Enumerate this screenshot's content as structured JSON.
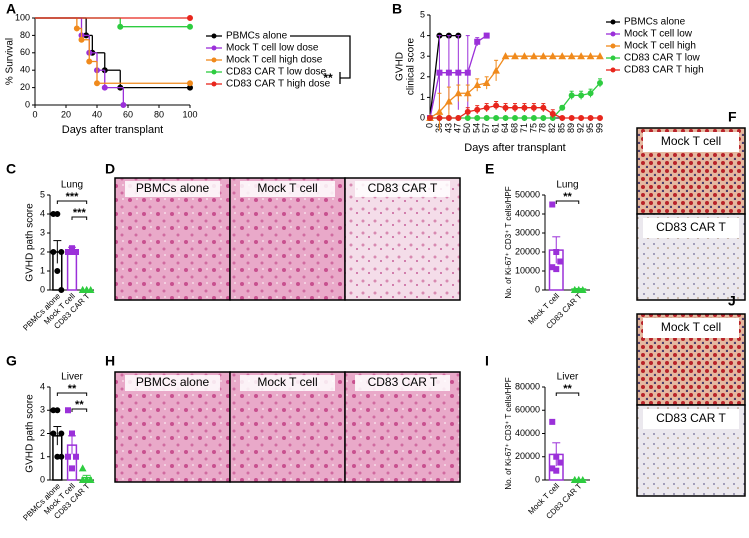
{
  "chart_data": [
    {
      "panel": "A",
      "type": "line",
      "step": true,
      "xlabel": "Days after transplant",
      "ylabel": "% Survival",
      "xlim": [
        0,
        100
      ],
      "xticks": [
        0,
        20,
        40,
        60,
        80,
        100
      ],
      "ylim": [
        0,
        100
      ],
      "yticks": [
        0,
        20,
        40,
        60,
        80,
        100
      ],
      "annotation": "**",
      "series": [
        {
          "name": "PBMCs alone",
          "color": "#000000",
          "x": [
            0,
            33,
            37,
            45,
            55,
            100
          ],
          "values": [
            100,
            80,
            60,
            40,
            20,
            20
          ]
        },
        {
          "name": "Mock T cell low dose",
          "color": "#9b30d9",
          "x": [
            0,
            30,
            35,
            40,
            45,
            57
          ],
          "values": [
            100,
            80,
            60,
            40,
            20,
            0
          ]
        },
        {
          "name": "Mock T cell high dose",
          "color": "#f08a1c",
          "x": [
            0,
            27,
            30,
            35,
            40,
            100
          ],
          "values": [
            100,
            88,
            75,
            50,
            25,
            25
          ]
        },
        {
          "name": "CD83 CAR T low dose",
          "color": "#2ecc40",
          "x": [
            0,
            55,
            100
          ],
          "values": [
            100,
            90,
            90
          ]
        },
        {
          "name": "CD83 CAR T high dose",
          "color": "#e8261c",
          "x": [
            0,
            100
          ],
          "values": [
            100,
            100
          ]
        }
      ]
    },
    {
      "panel": "B",
      "type": "line",
      "xlabel": "Days after transplant",
      "ylabel": [
        "GVHD",
        "clinical score"
      ],
      "ylim": [
        0,
        5
      ],
      "yticks": [
        0,
        1,
        2,
        3,
        4,
        5
      ],
      "categories": [
        "0",
        "36",
        "43",
        "47",
        "50",
        "54",
        "57",
        "61",
        "64",
        "68",
        "71",
        "75",
        "78",
        "82",
        "85",
        "89",
        "92",
        "95",
        "99"
      ],
      "series": [
        {
          "name": "PBMCs alone",
          "color": "#000000",
          "values": [
            0,
            4,
            4,
            4,
            null,
            null,
            null,
            null,
            null,
            null,
            null,
            null,
            null,
            null,
            null,
            null,
            null,
            null,
            null
          ]
        },
        {
          "name": "Mock T cell low",
          "color": "#9b30d9",
          "values": [
            0,
            2.2,
            2.2,
            2.2,
            2.2,
            3.7,
            4,
            null,
            null,
            null,
            null,
            null,
            null,
            null,
            null,
            null,
            null,
            null,
            null
          ],
          "errors": [
            0,
            1.8,
            1.8,
            1.8,
            1.8,
            0.2,
            0,
            null,
            null,
            null,
            null,
            null,
            null,
            null,
            null,
            null,
            null,
            null,
            null
          ]
        },
        {
          "name": "Mock T cell high",
          "color": "#f08a1c",
          "values": [
            0,
            0.3,
            0.8,
            1.2,
            1.2,
            1.6,
            1.7,
            2.3,
            3,
            3,
            3,
            3,
            3,
            3,
            3,
            3,
            3,
            3,
            3
          ],
          "errors": [
            0,
            0.9,
            0.7,
            0.4,
            0.4,
            0.3,
            0.3,
            0.5,
            0,
            0,
            0,
            0,
            0,
            0,
            0,
            0,
            0,
            0,
            0
          ]
        },
        {
          "name": "CD83 CAR T low",
          "color": "#2ecc40",
          "values": [
            0,
            0,
            0,
            0,
            0,
            0,
            0,
            0,
            0,
            0,
            0,
            0,
            0,
            0,
            0.5,
            1.1,
            1.1,
            1.2,
            1.7
          ],
          "errors": [
            0,
            0,
            0,
            0,
            0,
            0,
            0,
            0,
            0,
            0,
            0,
            0,
            0,
            0,
            0.1,
            0.2,
            0.2,
            0.2,
            0.2
          ]
        },
        {
          "name": "CD83 CAR T high",
          "color": "#e8261c",
          "values": [
            0,
            0,
            0,
            0,
            0.3,
            0.4,
            0.5,
            0.6,
            0.5,
            0.5,
            0.5,
            0.5,
            0.5,
            0.2,
            0,
            0,
            0,
            0,
            0
          ],
          "errors": [
            0,
            0,
            0,
            0,
            0.2,
            0.2,
            0.2,
            0.2,
            0.2,
            0.2,
            0.2,
            0.2,
            0.2,
            0.2,
            0,
            0,
            0,
            0,
            0
          ]
        }
      ]
    },
    {
      "panel": "C",
      "type": "bar",
      "title": "Lung",
      "ylabel": "GVHD path score",
      "ylim": [
        0,
        5
      ],
      "yticks": [
        0,
        1,
        2,
        3,
        4,
        5
      ],
      "categories": [
        "PBMCs alone",
        "Mock T cell",
        "CD83 CAR T"
      ],
      "colors": [
        "#000000",
        "#9b30d9",
        "#2ecc40"
      ],
      "markers": [
        "circle",
        "square",
        "triangle"
      ],
      "values": [
        2,
        2.1,
        0
      ],
      "errors": [
        0.6,
        0.15,
        0
      ],
      "points": [
        [
          4,
          4,
          2,
          2,
          1,
          0
        ],
        [
          2,
          2,
          2,
          2,
          2.2
        ],
        [
          0,
          0,
          0,
          0,
          0
        ]
      ],
      "annotations": [
        "***",
        "***"
      ]
    },
    {
      "panel": "E",
      "type": "bar",
      "title": "Lung",
      "ylabel": "No. of Ki-67⁺ CD3⁺ T cells/HPF",
      "ylim": [
        0,
        50000
      ],
      "yticks": [
        0,
        10000,
        20000,
        30000,
        40000,
        50000
      ],
      "categories": [
        "Mock T cell",
        "CD83 CAR T"
      ],
      "colors": [
        "#9b30d9",
        "#2ecc40"
      ],
      "markers": [
        "square",
        "triangle"
      ],
      "values": [
        21000,
        500
      ],
      "errors": [
        7000,
        300
      ],
      "points": [
        [
          45000,
          20000,
          15000,
          12000,
          11000
        ],
        [
          0,
          0,
          0,
          0,
          0
        ]
      ],
      "annotations": [
        "**"
      ]
    },
    {
      "panel": "G",
      "type": "bar",
      "title": "Liver",
      "ylabel": "GVHD path score",
      "ylim": [
        0,
        4
      ],
      "yticks": [
        0,
        1,
        2,
        3,
        4
      ],
      "categories": [
        "PBMCs alone",
        "Mock T cell",
        "CD83 CAR T"
      ],
      "colors": [
        "#000000",
        "#9b30d9",
        "#2ecc40"
      ],
      "markers": [
        "circle",
        "square",
        "triangle"
      ],
      "values": [
        1.9,
        1.5,
        0.1
      ],
      "errors": [
        0.4,
        0.4,
        0.1
      ],
      "points": [
        [
          3,
          3,
          2,
          2,
          1,
          1
        ],
        [
          3,
          2,
          1,
          1,
          0.5
        ],
        [
          0.5,
          0,
          0,
          0,
          0,
          0
        ]
      ],
      "annotations": [
        "**",
        "**"
      ]
    },
    {
      "panel": "I",
      "type": "bar",
      "title": "Liver",
      "ylabel": "No. of Ki-67⁺ CD3⁺ T cells/HPF",
      "ylim": [
        0,
        80000
      ],
      "yticks": [
        0,
        20000,
        40000,
        60000,
        80000
      ],
      "categories": [
        "Mock T cell",
        "CD83 CAR T"
      ],
      "colors": [
        "#9b30d9",
        "#2ecc40"
      ],
      "markers": [
        "square",
        "triangle"
      ],
      "values": [
        22000,
        200
      ],
      "errors": [
        10000,
        100
      ],
      "points": [
        [
          50000,
          20000,
          15000,
          10000,
          8000
        ],
        [
          0,
          0,
          0,
          0,
          0
        ]
      ],
      "annotations": [
        "**"
      ]
    }
  ],
  "images": [
    {
      "panel": "D",
      "labels": [
        "PBMCs alone",
        "Mock T cell",
        "CD83 CAR T"
      ]
    },
    {
      "panel": "F",
      "labels": [
        "Mock T cell",
        "CD83 CAR T"
      ]
    },
    {
      "panel": "H",
      "labels": [
        "PBMCs alone",
        "Mock T cell",
        "CD83 CAR T"
      ]
    },
    {
      "panel": "J",
      "labels": [
        "Mock T cell",
        "CD83 CAR T"
      ]
    }
  ]
}
